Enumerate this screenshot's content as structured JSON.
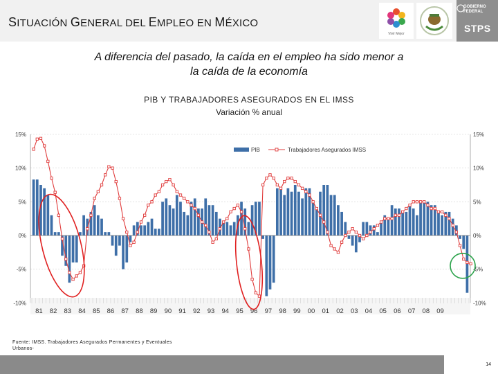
{
  "header": {
    "title_parts": [
      {
        "text": "S",
        "big": true
      },
      {
        "text": "ITUACIÓN ",
        "big": false
      },
      {
        "text": "G",
        "big": true
      },
      {
        "text": "ENERAL DEL ",
        "big": false
      },
      {
        "text": "E",
        "big": true
      },
      {
        "text": "MPLEO EN ",
        "big": false
      },
      {
        "text": "M",
        "big": true
      },
      {
        "text": "ÉXICO",
        "big": false
      }
    ],
    "logo_vm": "Vivir Mejor",
    "logo_stps_top": "GOBIERNO\nFEDERAL",
    "logo_stps_name": "STPS"
  },
  "headline": {
    "line1": "A diferencia del pasado, la caída en el empleo ha sido menor a",
    "line2": "la caída de la economía"
  },
  "colors": {
    "bar": "#3e6fa8",
    "line": "#e03c3c",
    "circle_red": "#e02020",
    "circle_green": "#2aa24a",
    "grid": "#cfcfcf"
  },
  "chart_data": {
    "type": "bar+line",
    "title": "PIB Y TRABAJADORES ASEGURADOS EN EL IMSS",
    "subtitle": "Variación % anual",
    "ylim": [
      -10,
      15
    ],
    "yticks": [
      "15%",
      "10%",
      "5%",
      "0%",
      "-5%",
      "-10%"
    ],
    "xticks": [
      "81",
      "82",
      "83",
      "84",
      "85",
      "86",
      "87",
      "88",
      "89",
      "90",
      "91",
      "92",
      "93",
      "94",
      "95",
      "96",
      "97",
      "98",
      "99",
      "00",
      "01",
      "02",
      "03",
      "04",
      "05",
      "06",
      "07",
      "08",
      "09"
    ],
    "x_unit": "quarter",
    "series": [
      {
        "name": "PIB",
        "kind": "bar",
        "values": [
          8.3,
          8.3,
          7.5,
          7.0,
          6.0,
          3.0,
          0.5,
          0.5,
          -3.0,
          -4.5,
          -7.0,
          -4.0,
          -4.0,
          0.5,
          3.0,
          2.5,
          3.5,
          4.5,
          3.0,
          2.5,
          0.5,
          0.5,
          -1.5,
          -3.0,
          -1.5,
          -5.0,
          -4.0,
          -1.0,
          1.5,
          2.0,
          1.5,
          1.5,
          2.0,
          2.5,
          1.0,
          1.0,
          5.0,
          5.5,
          4.5,
          4.0,
          6.0,
          5.0,
          3.5,
          3.0,
          5.0,
          5.5,
          4.0,
          4.0,
          5.5,
          4.5,
          4.5,
          3.5,
          2.5,
          2.0,
          2.0,
          1.5,
          2.0,
          3.0,
          5.0,
          4.0,
          2.0,
          4.5,
          5.0,
          5.0,
          -0.5,
          -9.0,
          -8.0,
          -7.0,
          7.0,
          7.0,
          6.0,
          7.0,
          6.5,
          7.5,
          6.5,
          5.5,
          7.0,
          7.0,
          5.0,
          4.0,
          6.5,
          7.5,
          7.5,
          6.0,
          6.0,
          4.5,
          3.5,
          2.0,
          -0.5,
          -1.5,
          -2.5,
          -1.0,
          2.0,
          2.0,
          1.5,
          1.5,
          0.5,
          2.0,
          3.0,
          2.5,
          4.5,
          4.0,
          4.0,
          3.5,
          3.5,
          4.5,
          4.0,
          3.0,
          5.0,
          5.0,
          5.0,
          4.5,
          4.5,
          3.5,
          3.0,
          3.5,
          3.5,
          2.5,
          1.5,
          -0.5,
          -2.0,
          -8.5
        ]
      },
      {
        "name": "Trabajadores Asegurados IMSS",
        "kind": "line",
        "values": [
          12.8,
          14.3,
          14.4,
          13.3,
          11.0,
          8.5,
          6.4,
          3.0,
          -0.5,
          -3.5,
          -5.5,
          -6.5,
          -6.0,
          -5.5,
          -4.5,
          1.0,
          3.0,
          5.5,
          6.5,
          7.5,
          9.0,
          10.2,
          10.0,
          8.0,
          5.5,
          2.5,
          0.5,
          -1.5,
          -1.0,
          0.5,
          2.0,
          3.0,
          4.5,
          5.0,
          6.0,
          6.5,
          7.5,
          8.0,
          8.3,
          7.5,
          6.5,
          6.0,
          5.5,
          5.0,
          4.5,
          4.0,
          3.0,
          2.0,
          1.5,
          0.5,
          -1.0,
          -0.5,
          1.0,
          2.0,
          2.5,
          3.5,
          4.0,
          4.5,
          3.5,
          1.0,
          -2.0,
          -6.5,
          -8.5,
          -9.0,
          7.5,
          8.5,
          9.0,
          8.5,
          7.5,
          7.0,
          8.0,
          8.5,
          8.5,
          8.0,
          7.5,
          7.0,
          6.5,
          6.0,
          5.0,
          4.0,
          3.0,
          2.0,
          0.5,
          -1.5,
          -2.0,
          -2.5,
          -1.0,
          0.0,
          0.5,
          1.0,
          0.5,
          0.0,
          -0.5,
          0.0,
          0.5,
          1.0,
          1.5,
          2.0,
          2.5,
          2.5,
          2.5,
          3.0,
          3.0,
          3.5,
          4.0,
          4.5,
          5.0,
          5.0,
          5.0,
          5.0,
          4.5,
          4.0,
          4.0,
          3.5,
          3.5,
          3.0,
          2.5,
          1.5,
          0.5,
          -1.5,
          -3.5,
          -4.0,
          -4.2
        ]
      }
    ],
    "legend": [
      "PIB",
      "Trabajadores Asegurados IMSS"
    ],
    "legend_position": "top-right",
    "annotations": [
      {
        "shape": "ellipse",
        "color": "red",
        "around": "82-83 downturn"
      },
      {
        "shape": "ellipse",
        "color": "red",
        "around": "95 downturn"
      },
      {
        "shape": "circle",
        "color": "green",
        "around": "09 latest values"
      }
    ]
  },
  "source": {
    "line1": "Fuente: IMSS. Trabajadores Asegurados Permanentes y Eventuales",
    "line2": "Urbanos-"
  },
  "page_number": "14"
}
